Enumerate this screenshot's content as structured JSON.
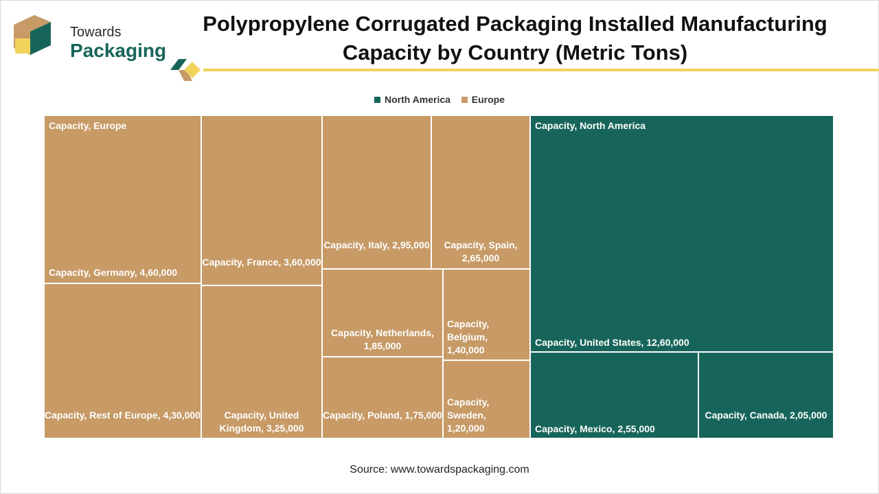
{
  "logo": {
    "line1": "Towards",
    "line2": "Packaging"
  },
  "title": "Polypropylene Corrugated Packaging Installed Manufacturing Capacity by Country (Metric Tons)",
  "source": "Source: www.towardspackaging.com",
  "colors": {
    "north_america": "#17655a",
    "europe": "#c79a66",
    "accent": "#f2d45c"
  },
  "chart_data": {
    "type": "treemap",
    "legend": [
      "North America",
      "Europe"
    ],
    "legend_position": "top-center",
    "groups": [
      {
        "name": "Europe",
        "label": "Capacity, Europe",
        "items": [
          {
            "name": "Germany",
            "value": 460000,
            "label": "Capacity, Germany, 4,60,000"
          },
          {
            "name": "Rest of Europe",
            "value": 430000,
            "label": "Capacity, Rest of Europe, 4,30,000"
          },
          {
            "name": "France",
            "value": 360000,
            "label": "Capacity, France, 3,60,000"
          },
          {
            "name": "United Kingdom",
            "value": 325000,
            "label": "Capacity, United Kingdom, 3,25,000"
          },
          {
            "name": "Italy",
            "value": 295000,
            "label": "Capacity, Italy, 2,95,000"
          },
          {
            "name": "Spain",
            "value": 265000,
            "label": "Capacity, Spain, 2,65,000"
          },
          {
            "name": "Netherlands",
            "value": 185000,
            "label": "Capacity, Netherlands, 1,85,000"
          },
          {
            "name": "Poland",
            "value": 175000,
            "label": "Capacity, Poland, 1,75,000"
          },
          {
            "name": "Belgium",
            "value": 140000,
            "label": "Capacity, Belgium, 1,40,000"
          },
          {
            "name": "Sweden",
            "value": 120000,
            "label": "Capacity, Sweden, 1,20,000"
          }
        ]
      },
      {
        "name": "North America",
        "label": "Capacity, North America",
        "items": [
          {
            "name": "United States",
            "value": 1260000,
            "label": "Capacity, United States, 12,60,000"
          },
          {
            "name": "Mexico",
            "value": 255000,
            "label": "Capacity, Mexico, 2,55,000"
          },
          {
            "name": "Canada",
            "value": 205000,
            "label": "Capacity, Canada, 2,05,000"
          }
        ]
      }
    ]
  }
}
